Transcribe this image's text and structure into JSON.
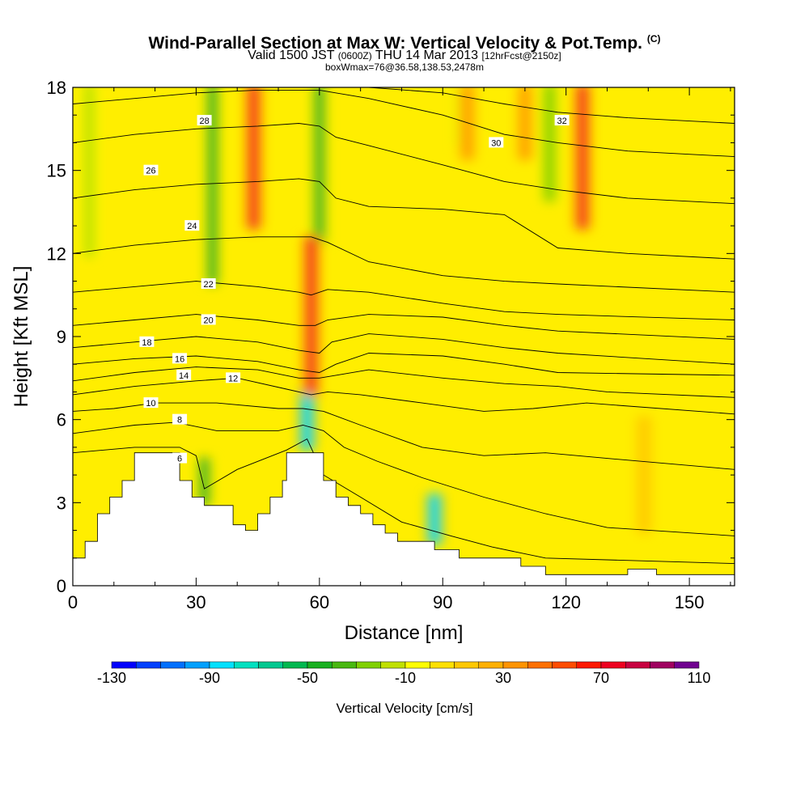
{
  "title": "Wind-Parallel Section at Max W: Vertical Velocity & Pot.Temp.",
  "title_mark": "(C)",
  "subtitle_a": "Valid 1500 JST",
  "subtitle_b": "(0600Z)",
  "subtitle_c": "THU 14 Mar 2013",
  "subtitle_d": "[12hrFcst@2150z]",
  "subtitle2": "boxWmax=76@36.58,138.53,2478m",
  "chart_data": {
    "type": "heatmap",
    "xlabel": "Distance [nm]",
    "ylabel": "Height [Kft MSL]",
    "xlim": [
      0,
      161
    ],
    "ylim": [
      0,
      18
    ],
    "x_ticks": [
      0,
      30,
      60,
      90,
      120,
      150
    ],
    "y_ticks": [
      0,
      3,
      6,
      9,
      12,
      15,
      18
    ],
    "colorbar": {
      "label": "Vertical Velocity [cm/s]",
      "tick_labels": [
        -130,
        -90,
        -50,
        -10,
        30,
        70,
        110
      ],
      "bins": [
        -130,
        -120,
        -110,
        -100,
        -90,
        -80,
        -70,
        -60,
        -50,
        -40,
        -30,
        -20,
        -10,
        0,
        10,
        20,
        30,
        40,
        50,
        60,
        70,
        80,
        90,
        100,
        110
      ],
      "colors": [
        "#0000ff",
        "#0040ff",
        "#0070ff",
        "#00a0ff",
        "#00e0ff",
        "#00e0c0",
        "#00c890",
        "#00b850",
        "#18b020",
        "#48b810",
        "#80d000",
        "#c0e000",
        "#ffff00",
        "#ffe000",
        "#ffc800",
        "#ffb000",
        "#ff9400",
        "#ff7000",
        "#ff4c00",
        "#ff1800",
        "#ee0020",
        "#c80040",
        "#a00060",
        "#700090"
      ]
    },
    "terrain_kft": [
      [
        0,
        1
      ],
      [
        3,
        1
      ],
      [
        3,
        1.6
      ],
      [
        6,
        1.6
      ],
      [
        6,
        2.6
      ],
      [
        9,
        2.6
      ],
      [
        9,
        3.2
      ],
      [
        12,
        3.2
      ],
      [
        12,
        3.8
      ],
      [
        15,
        3.8
      ],
      [
        15,
        4.8
      ],
      [
        26,
        4.8
      ],
      [
        26,
        3.8
      ],
      [
        29,
        3.8
      ],
      [
        29,
        3.2
      ],
      [
        32,
        3.2
      ],
      [
        32,
        2.9
      ],
      [
        39,
        2.9
      ],
      [
        39,
        2.2
      ],
      [
        42,
        2.2
      ],
      [
        42,
        2.0
      ],
      [
        45,
        2.0
      ],
      [
        45,
        2.6
      ],
      [
        48,
        2.6
      ],
      [
        48,
        3.2
      ],
      [
        51,
        3.2
      ],
      [
        51,
        3.8
      ],
      [
        52,
        3.8
      ],
      [
        52,
        4.8
      ],
      [
        61,
        4.8
      ],
      [
        61,
        3.8
      ],
      [
        64,
        3.8
      ],
      [
        64,
        3.2
      ],
      [
        67,
        3.2
      ],
      [
        67,
        2.9
      ],
      [
        70,
        2.9
      ],
      [
        70,
        2.6
      ],
      [
        73,
        2.6
      ],
      [
        73,
        2.2
      ],
      [
        76,
        2.2
      ],
      [
        76,
        1.9
      ],
      [
        79,
        1.9
      ],
      [
        79,
        1.6
      ],
      [
        88,
        1.6
      ],
      [
        88,
        1.3
      ],
      [
        94,
        1.3
      ],
      [
        94,
        1.0
      ],
      [
        109,
        1.0
      ],
      [
        109,
        0.7
      ],
      [
        115,
        0.7
      ],
      [
        115,
        0.4
      ],
      [
        135,
        0.4
      ],
      [
        135,
        0.6
      ],
      [
        142,
        0.6
      ],
      [
        142,
        0.4
      ],
      [
        161,
        0.4
      ]
    ],
    "updrafts": [
      {
        "x": 44,
        "y0": 13,
        "y1": 18,
        "peak": 70
      },
      {
        "x": 58,
        "y0": 7,
        "y1": 12.5,
        "peak": 70
      },
      {
        "x": 124,
        "y0": 13,
        "y1": 18,
        "peak": 70
      },
      {
        "x": 96,
        "y0": 15.5,
        "y1": 18,
        "peak": 30
      },
      {
        "x": 110,
        "y0": 15.5,
        "y1": 18,
        "peak": 30
      },
      {
        "x": 139,
        "y0": 2,
        "y1": 6,
        "peak": 15
      }
    ],
    "downdrafts": [
      {
        "x": 34,
        "y0": 11,
        "y1": 18,
        "peak": -50
      },
      {
        "x": 60,
        "y0": 12.5,
        "y1": 18,
        "peak": -50
      },
      {
        "x": 57,
        "y0": 5,
        "y1": 7,
        "peak": -90
      },
      {
        "x": 88,
        "y0": 1.6,
        "y1": 3.2,
        "peak": -90
      },
      {
        "x": 95,
        "y0": 16,
        "y1": 18,
        "peak": -30
      },
      {
        "x": 116,
        "y0": 14,
        "y1": 18,
        "peak": -30
      },
      {
        "x": 4,
        "y0": 12,
        "y1": 18,
        "peak": -20
      },
      {
        "x": 32,
        "y0": 3,
        "y1": 4.5,
        "peak": -50
      }
    ],
    "theta_contours": [
      {
        "label": "6",
        "pts": [
          [
            0,
            4.8
          ],
          [
            15,
            5.0
          ],
          [
            26,
            5.0
          ],
          [
            30,
            4.7
          ],
          [
            32,
            3.5
          ],
          [
            40,
            4.2
          ],
          [
            52,
            4.9
          ],
          [
            57,
            5.3
          ],
          [
            61,
            4.0
          ],
          [
            70,
            3.2
          ],
          [
            80,
            2.3
          ],
          [
            92,
            1.8
          ],
          [
            102,
            1.4
          ],
          [
            115,
            1.0
          ],
          [
            161,
            0.8
          ]
        ],
        "lx": 26,
        "ly": 4.6
      },
      {
        "label": "8",
        "pts": [
          [
            0,
            5.5
          ],
          [
            15,
            5.8
          ],
          [
            25,
            5.9
          ],
          [
            35,
            5.6
          ],
          [
            50,
            5.6
          ],
          [
            56,
            5.8
          ],
          [
            61,
            5.6
          ],
          [
            66,
            5.0
          ],
          [
            74,
            4.5
          ],
          [
            85,
            3.9
          ],
          [
            100,
            3.2
          ],
          [
            115,
            2.6
          ],
          [
            130,
            2.1
          ],
          [
            161,
            1.8
          ]
        ],
        "lx": 26,
        "ly": 6.0
      },
      {
        "label": "10",
        "pts": [
          [
            0,
            6.3
          ],
          [
            10,
            6.4
          ],
          [
            20,
            6.6
          ],
          [
            35,
            6.6
          ],
          [
            50,
            6.4
          ],
          [
            56,
            6.4
          ],
          [
            61,
            6.3
          ],
          [
            70,
            5.8
          ],
          [
            85,
            5.0
          ],
          [
            100,
            4.7
          ],
          [
            115,
            4.8
          ],
          [
            130,
            4.6
          ],
          [
            161,
            4.2
          ]
        ],
        "lx": 19,
        "ly": 6.6
      },
      {
        "label": "12",
        "pts": [
          [
            0,
            6.9
          ],
          [
            15,
            7.2
          ],
          [
            30,
            7.4
          ],
          [
            40,
            7.5
          ],
          [
            52,
            7.1
          ],
          [
            58,
            6.9
          ],
          [
            62,
            7.0
          ],
          [
            70,
            6.9
          ],
          [
            85,
            6.6
          ],
          [
            100,
            6.3
          ],
          [
            112,
            6.4
          ],
          [
            125,
            6.6
          ],
          [
            161,
            6.2
          ]
        ],
        "lx": 39,
        "ly": 7.5
      },
      {
        "label": "14",
        "pts": [
          [
            0,
            7.4
          ],
          [
            15,
            7.7
          ],
          [
            30,
            7.9
          ],
          [
            45,
            7.8
          ],
          [
            55,
            7.5
          ],
          [
            60,
            7.5
          ],
          [
            64,
            7.6
          ],
          [
            72,
            7.8
          ],
          [
            90,
            7.5
          ],
          [
            105,
            7.3
          ],
          [
            118,
            7.2
          ],
          [
            130,
            7.0
          ],
          [
            161,
            6.8
          ]
        ],
        "lx": 27,
        "ly": 7.6
      },
      {
        "label": "16",
        "pts": [
          [
            0,
            8.0
          ],
          [
            15,
            8.2
          ],
          [
            30,
            8.3
          ],
          [
            45,
            8.1
          ],
          [
            55,
            7.8
          ],
          [
            60,
            7.7
          ],
          [
            64,
            8.0
          ],
          [
            72,
            8.4
          ],
          [
            90,
            8.3
          ],
          [
            105,
            8.0
          ],
          [
            118,
            7.7
          ],
          [
            161,
            7.6
          ]
        ],
        "lx": 26,
        "ly": 8.2
      },
      {
        "label": "18",
        "pts": [
          [
            0,
            8.6
          ],
          [
            15,
            8.8
          ],
          [
            30,
            9.0
          ],
          [
            45,
            8.8
          ],
          [
            55,
            8.5
          ],
          [
            60,
            8.4
          ],
          [
            63,
            8.8
          ],
          [
            72,
            9.1
          ],
          [
            90,
            8.9
          ],
          [
            105,
            8.6
          ],
          [
            118,
            8.4
          ],
          [
            161,
            8.0
          ]
        ],
        "lx": 18,
        "ly": 8.8
      },
      {
        "label": "20",
        "pts": [
          [
            0,
            9.4
          ],
          [
            15,
            9.6
          ],
          [
            30,
            9.8
          ],
          [
            45,
            9.6
          ],
          [
            55,
            9.4
          ],
          [
            59,
            9.4
          ],
          [
            62,
            9.6
          ],
          [
            72,
            9.8
          ],
          [
            90,
            9.7
          ],
          [
            105,
            9.4
          ],
          [
            118,
            9.2
          ],
          [
            161,
            8.9
          ]
        ],
        "lx": 33,
        "ly": 9.6
      },
      {
        "label": "22",
        "pts": [
          [
            0,
            10.6
          ],
          [
            15,
            10.8
          ],
          [
            30,
            11.0
          ],
          [
            45,
            10.8
          ],
          [
            55,
            10.6
          ],
          [
            58,
            10.5
          ],
          [
            62,
            10.7
          ],
          [
            72,
            10.6
          ],
          [
            90,
            10.2
          ],
          [
            105,
            9.9
          ],
          [
            118,
            9.8
          ],
          [
            161,
            9.6
          ]
        ],
        "lx": 33,
        "ly": 10.9
      },
      {
        "label": "24",
        "pts": [
          [
            0,
            12.0
          ],
          [
            15,
            12.3
          ],
          [
            30,
            12.5
          ],
          [
            45,
            12.6
          ],
          [
            55,
            12.6
          ],
          [
            58,
            12.6
          ],
          [
            62,
            12.4
          ],
          [
            72,
            11.7
          ],
          [
            90,
            11.2
          ],
          [
            105,
            11.0
          ],
          [
            118,
            10.9
          ],
          [
            161,
            10.6
          ]
        ],
        "lx": 29,
        "ly": 13.0
      },
      {
        "label": "26",
        "pts": [
          [
            0,
            14.0
          ],
          [
            15,
            14.3
          ],
          [
            30,
            14.5
          ],
          [
            45,
            14.6
          ],
          [
            55,
            14.7
          ],
          [
            60,
            14.6
          ],
          [
            64,
            14.0
          ],
          [
            72,
            13.7
          ],
          [
            90,
            13.6
          ],
          [
            105,
            13.4
          ],
          [
            118,
            12.2
          ],
          [
            135,
            12.0
          ],
          [
            161,
            11.8
          ]
        ],
        "lx": 19,
        "ly": 15.0
      },
      {
        "label": "28",
        "pts": [
          [
            0,
            16.0
          ],
          [
            15,
            16.3
          ],
          [
            30,
            16.5
          ],
          [
            45,
            16.6
          ],
          [
            55,
            16.7
          ],
          [
            60,
            16.6
          ],
          [
            64,
            16.2
          ],
          [
            72,
            15.9
          ],
          [
            90,
            15.2
          ],
          [
            105,
            14.6
          ],
          [
            118,
            14.3
          ],
          [
            135,
            14.0
          ],
          [
            161,
            13.8
          ]
        ],
        "lx": 32,
        "ly": 16.8
      },
      {
        "label": "30",
        "pts": [
          [
            0,
            17.4
          ],
          [
            15,
            17.6
          ],
          [
            30,
            17.8
          ],
          [
            45,
            17.9
          ],
          [
            60,
            17.9
          ],
          [
            72,
            17.6
          ],
          [
            90,
            17.0
          ],
          [
            105,
            16.3
          ],
          [
            118,
            16.0
          ],
          [
            135,
            15.7
          ],
          [
            161,
            15.5
          ]
        ],
        "lx": 103,
        "ly": 16.0
      },
      {
        "label": "32",
        "pts": [
          [
            72,
            18.0
          ],
          [
            90,
            17.8
          ],
          [
            105,
            17.4
          ],
          [
            118,
            17.1
          ],
          [
            135,
            16.9
          ],
          [
            161,
            16.7
          ]
        ],
        "lx": 119,
        "ly": 16.8
      }
    ]
  }
}
